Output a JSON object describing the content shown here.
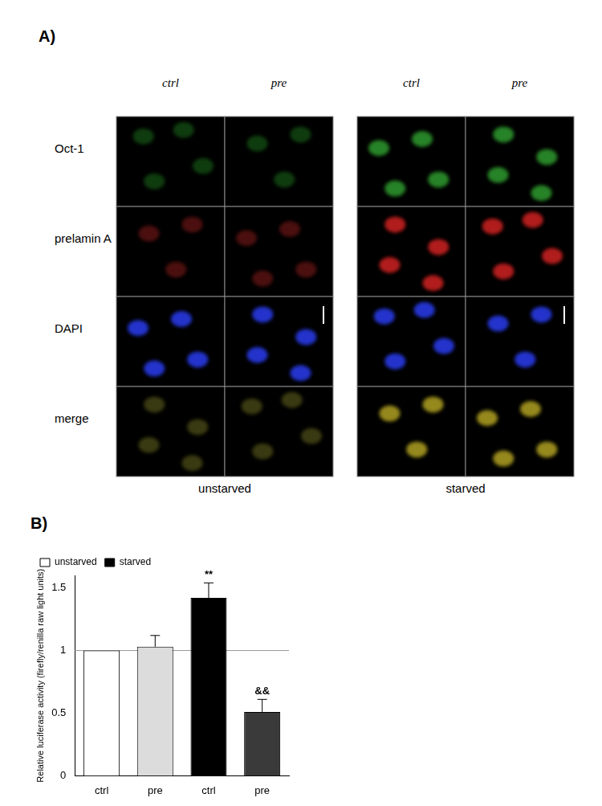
{
  "figure": {
    "panel_a": {
      "label": "A)",
      "columns": [
        "ctrl",
        "pre"
      ],
      "rows": [
        "Oct-1",
        "prelamin A",
        "DAPI",
        "merge"
      ],
      "groups": [
        "unstarved",
        "starved"
      ]
    },
    "panel_b_label": "B)"
  },
  "chart_data": {
    "type": "bar",
    "y_label": "Relative luciferase activity (firefly/renilla raw light units)",
    "categories": [
      "ctrl",
      "pre",
      "ctrl",
      "pre"
    ],
    "series": [
      {
        "name": "unstarved",
        "color": "#ffffff",
        "colors": [
          "#ffffff",
          "#dcdcdc",
          "#ffffff",
          "#ffffff"
        ],
        "values": [
          1,
          1.03,
          null,
          null
        ],
        "errors": [
          0,
          0.09,
          null,
          null
        ]
      },
      {
        "name": "starved",
        "color": "#000000",
        "colors": [
          "#000000",
          "#000000",
          "#000000",
          "#3a3a3a"
        ],
        "values": [
          null,
          null,
          1.42,
          0.51
        ],
        "errors": [
          null,
          null,
          0.12,
          0.1
        ]
      }
    ],
    "annotations": [
      {
        "index": 2,
        "text": "**"
      },
      {
        "index": 3,
        "text": "&&"
      }
    ],
    "reference_line": 1,
    "ylim": [
      0,
      1.6
    ],
    "yticks": [
      0,
      0.5,
      1,
      1.5
    ],
    "grid": false,
    "legend": "upper left"
  }
}
